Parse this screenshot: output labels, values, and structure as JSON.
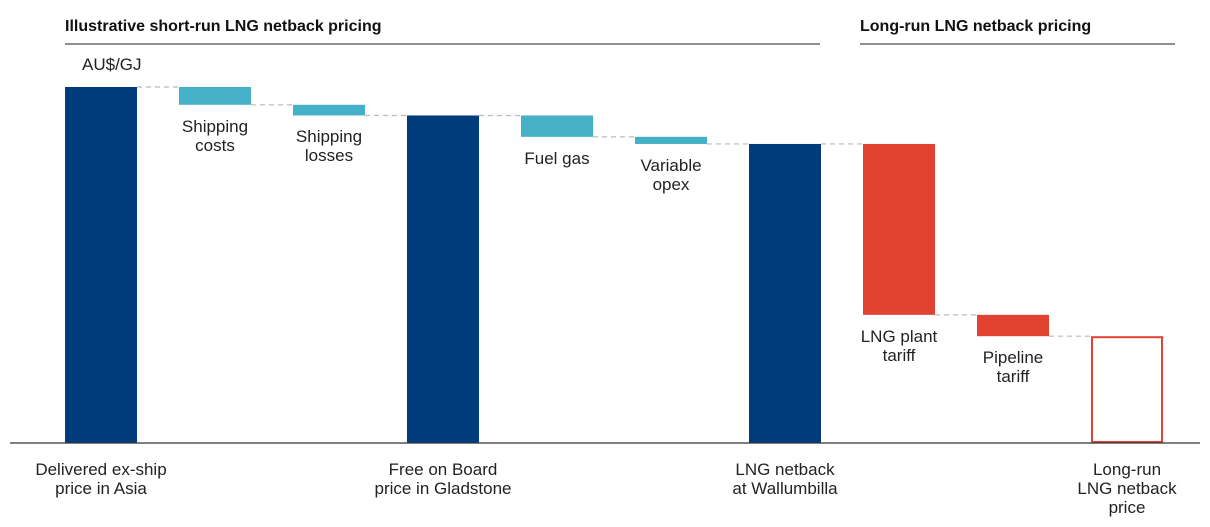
{
  "chart_data": {
    "type": "waterfall",
    "title": "Illustrative short-run LNG netback pricing",
    "subtitle": "Long-run LNG netback pricing",
    "ylabel": "AU$/GJ",
    "categories": [
      "Delivered ex-ship\nprice in Asia",
      "Shipping\ncosts",
      "Shipping\nlosses",
      "Free on Board\nprice in Gladstone",
      "Fuel gas",
      "Variable\nopex",
      "LNG netback\nat Wallumbilla",
      "LNG plant\ntariff",
      "Pipeline\ntariff",
      "Long-run\nLNG netback\nprice"
    ],
    "values": [
      10.0,
      0.5,
      0.3,
      9.2,
      0.6,
      0.2,
      8.4,
      4.8,
      0.6,
      3.0
    ],
    "kinds": [
      "total",
      "decrease",
      "decrease",
      "total",
      "decrease",
      "decrease",
      "total",
      "decrease",
      "decrease",
      "total"
    ],
    "colors": [
      "#003b7c",
      "#45b1c8",
      "#45b1c8",
      "#003b7c",
      "#45b1c8",
      "#45b1c8",
      "#003b7c",
      "#e24331",
      "#e24331",
      "#e24331"
    ],
    "outlined": [
      false,
      false,
      false,
      false,
      false,
      false,
      false,
      false,
      false,
      true
    ],
    "ylim": [
      0,
      10
    ]
  }
}
